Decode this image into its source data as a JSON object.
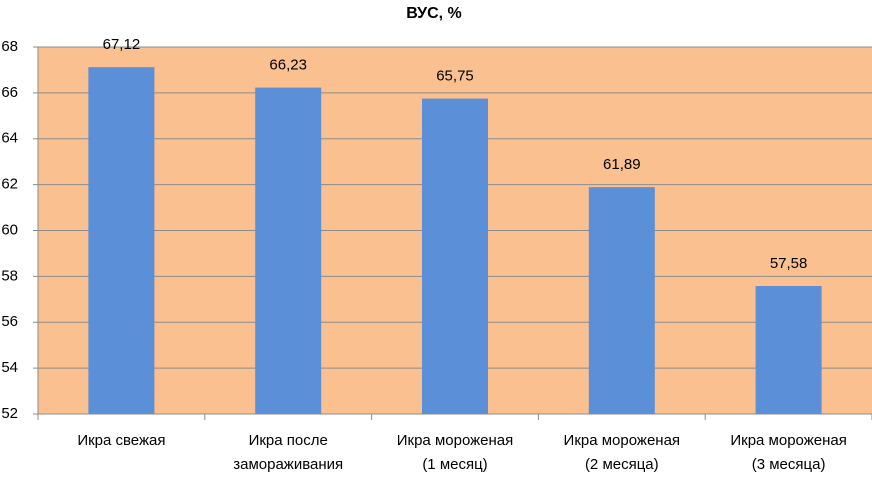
{
  "chart_data": {
    "type": "bar",
    "title": "ВУС, %",
    "categories": [
      "Икра свежая",
      "Икра после\nзамораживания",
      "Икра мороженая\n(1 месяц)",
      "Икра мороженая\n(2 месяца)",
      "Икра мороженая\n(3 месяца)"
    ],
    "values": [
      67.12,
      66.23,
      65.75,
      61.89,
      57.58
    ],
    "value_labels": [
      "67,12",
      "66,23",
      "65,75",
      "61,89",
      "57,58"
    ],
    "color": "#5b8fd8",
    "background": "#fac090",
    "ylim": [
      52,
      68
    ],
    "yticks": [
      52,
      54,
      56,
      58,
      60,
      62,
      64,
      66,
      68
    ],
    "grid": true
  }
}
